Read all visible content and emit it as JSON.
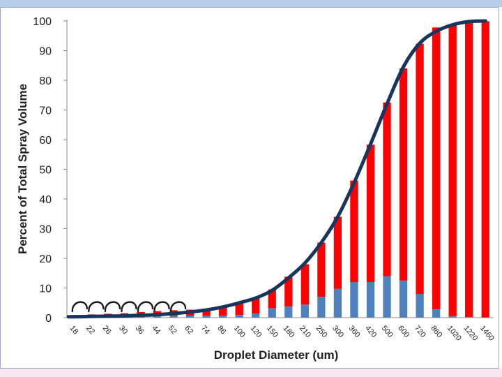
{
  "chart_data": {
    "type": "bar",
    "stacked": true,
    "xlabel": "Droplet Diameter (um)",
    "ylabel": "Percent of Total Spray Volume",
    "ylim": [
      0,
      100
    ],
    "yticks": [
      "0",
      "10",
      "20",
      "30",
      "40",
      "50",
      "60",
      "70",
      "80",
      "90",
      "100"
    ],
    "grid": false,
    "categories": [
      "18",
      "22",
      "26",
      "30",
      "36",
      "44",
      "52",
      "62",
      "74",
      "86",
      "100",
      "120",
      "150",
      "180",
      "210",
      "250",
      "300",
      "360",
      "420",
      "500",
      "600",
      "720",
      "860",
      "1020",
      "1220",
      "1460"
    ],
    "series": [
      {
        "values": [
          0.2,
          0.2,
          0.3,
          0.3,
          0.4,
          0.5,
          0.6,
          0.7,
          0.7,
          0.7,
          0.9,
          1.4,
          3.2,
          3.8,
          4.4,
          7.0,
          9.7,
          12.0,
          12.0,
          14.0,
          12.5,
          8.0,
          2.8,
          0.5,
          0.2,
          0.1
        ]
      },
      {
        "values": [
          0.7,
          0.9,
          1.0,
          1.2,
          1.5,
          1.7,
          1.9,
          2.0,
          2.3,
          3.3,
          4.1,
          5.1,
          6.3,
          10.0,
          13.6,
          18.3,
          24.3,
          34.2,
          46.3,
          58.5,
          71.5,
          84.3,
          95.0,
          98.3,
          99.6,
          99.8
        ]
      }
    ],
    "line": {
      "values": [
        0.3,
        0.4,
        0.5,
        0.6,
        0.8,
        1.0,
        1.4,
        1.9,
        2.6,
        3.6,
        5.0,
        6.6,
        9.2,
        13.4,
        18.4,
        25.3,
        34.0,
        45.5,
        58.5,
        72.0,
        84.5,
        92.5,
        96.5,
        98.7,
        99.8,
        100
      ]
    },
    "colors": {
      "series1": "#4f81bd",
      "series2": "#ff0000",
      "line": "#17365d",
      "arcs": "#1a1a1a"
    },
    "arcs_count": 7
  }
}
